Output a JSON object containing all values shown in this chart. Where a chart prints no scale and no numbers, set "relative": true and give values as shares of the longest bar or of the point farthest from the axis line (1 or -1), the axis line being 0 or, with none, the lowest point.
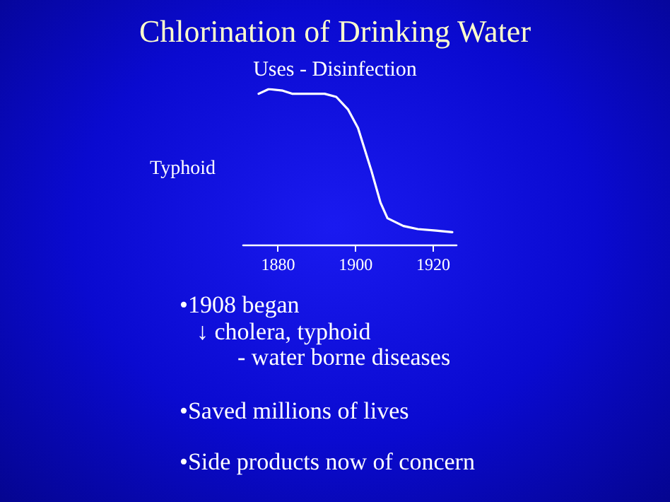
{
  "chart_data": {
    "type": "line",
    "title": "Chlorination of Drinking Water",
    "subtitle": "Uses - Disinfection",
    "ylabel": "Typhoid",
    "relative": true,
    "color": "#ffffff",
    "marker": "none",
    "grid": false,
    "x": [
      1875,
      1877.6,
      1881.2,
      1883.6,
      1892,
      1895,
      1898,
      1900.6,
      1904,
      1906.4,
      1908.2,
      1912.3,
      1916,
      1920.7,
      1924.9
    ],
    "values": [
      0.97,
      1.0,
      0.99,
      0.97,
      0.97,
      0.95,
      0.87,
      0.75,
      0.48,
      0.27,
      0.17,
      0.12,
      0.1,
      0.09,
      0.08
    ],
    "xlim": [
      1871,
      1926
    ],
    "xticks": [
      1880,
      1900,
      1920
    ],
    "annotations": [
      "•1908 began",
      "↓ cholera, typhoid",
      "- water borne diseases",
      "•Saved millions of lives",
      "•Side products now of concern"
    ]
  }
}
